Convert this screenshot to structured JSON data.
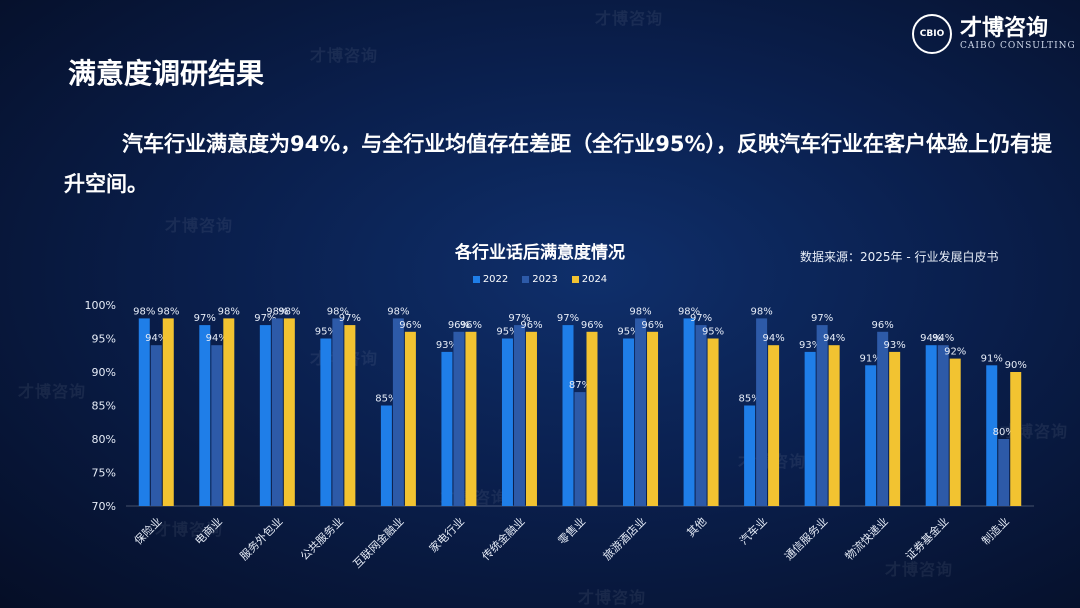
{
  "header": {
    "title": "满意度调研结果",
    "logo_text": "CBIO",
    "logo_cn": "才博咨询",
    "logo_en": "CAIBO CONSULTING"
  },
  "intro": "汽车行业满意度为94%，与全行业均值存在差距（全行业95%），反映汽车行业在客户体验上仍有提升空间。",
  "watermark": "才博咨询",
  "source": "数据来源：2025年 - 行业发展白皮书",
  "colors": {
    "s2022": "#1f7ee8",
    "s2023": "#2d5aa8",
    "s2024": "#f2c331"
  },
  "chart_data": {
    "type": "bar",
    "title": "各行业话后满意度情况",
    "categories": [
      "保险业",
      "电商业",
      "服务外包业",
      "公共服务业",
      "互联网金融业",
      "家电行业",
      "传统金融业",
      "零售业",
      "旅游酒店业",
      "其他",
      "汽车业",
      "通信服务业",
      "物流快递业",
      "证券基金业",
      "制造业"
    ],
    "series": [
      {
        "name": "2022",
        "values": [
          98,
          97,
          97,
          95,
          85,
          93,
          95,
          97,
          95,
          98,
          85,
          93,
          91,
          94,
          91
        ]
      },
      {
        "name": "2023",
        "values": [
          94,
          94,
          98,
          98,
          98,
          96,
          97,
          87,
          98,
          97,
          98,
          97,
          96,
          94,
          80
        ]
      },
      {
        "name": "2024",
        "values": [
          98,
          98,
          98,
          97,
          96,
          96,
          96,
          96,
          96,
          95,
          94,
          94,
          93,
          92,
          90
        ]
      }
    ],
    "ylim": [
      70,
      100
    ],
    "yticks": [
      "100%",
      "95%",
      "90%",
      "85%",
      "80%",
      "75%",
      "70%"
    ],
    "legend_position": "top-center"
  }
}
